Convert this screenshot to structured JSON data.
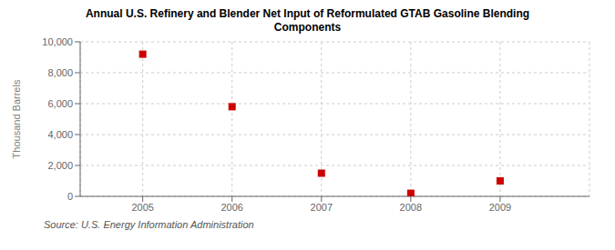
{
  "chart_data": {
    "type": "scatter",
    "title": "Annual U.S. Refinery and Blender Net Input of Reformulated GTAB Gasoline Blending\nComponents",
    "ylabel": "Thousand Barrels",
    "annotations": [
      "Source: U.S. Energy Information Administration"
    ],
    "x": [
      2005,
      2006,
      2007,
      2008,
      2009
    ],
    "values": [
      9200,
      5800,
      1500,
      200,
      1000
    ],
    "color": "#cc0000",
    "marker": "square",
    "xlim": [
      2004.3,
      2010.0
    ],
    "xticks": [
      2005,
      2006,
      2007,
      2008,
      2009
    ],
    "ylim": [
      0,
      10000
    ],
    "yticks": [
      0,
      {
        "value": 2000,
        "label": "2,000"
      },
      {
        "value": 4000,
        "label": "4,000"
      },
      {
        "value": 6000,
        "label": "6,000"
      },
      {
        "value": 8000,
        "label": "8,000"
      },
      {
        "value": 10000,
        "label": "10,000"
      }
    ],
    "grid": true
  }
}
